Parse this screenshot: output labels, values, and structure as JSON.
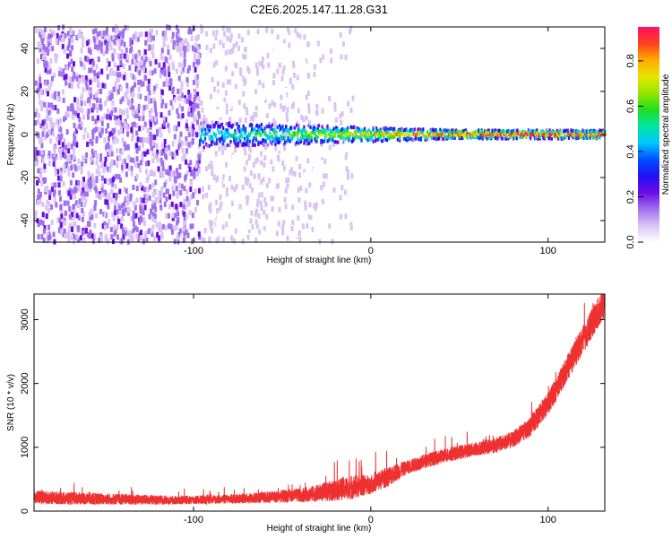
{
  "title": "C2E6.2025.147.11.28.G31",
  "chart_data": [
    {
      "type": "heatmap",
      "xlabel": "Height of straight line (km)",
      "ylabel": "Frequency (Hz)",
      "xlim": [
        -190,
        132
      ],
      "ylim": [
        -50,
        50
      ],
      "xticks": [
        -100,
        0,
        100
      ],
      "yticks": [
        -40,
        -20,
        0,
        20,
        40
      ],
      "colorbar": {
        "label": "Normalized spectral amplitude",
        "range": [
          0,
          0.95
        ],
        "ticks": [
          0.0,
          0.2,
          0.4,
          0.6,
          0.8
        ],
        "colormap": [
          "#ffffff",
          "#d9c4f5",
          "#a070ee",
          "#6a0ae8",
          "#2010f5",
          "#0050ff",
          "#00c8ff",
          "#00e6a0",
          "#20dd20",
          "#98e600",
          "#e6e600",
          "#ffaa00",
          "#ff4020",
          "#ff1060"
        ]
      },
      "band": {
        "noise_region_x": [
          -190,
          -30
        ],
        "signal_start_x": -97,
        "center_frequency_hz": 0,
        "bandwidth_hz_start": 6,
        "bandwidth_hz_end": 2,
        "peak_amplitude": 0.95
      }
    },
    {
      "type": "line",
      "xlabel": "Height of straight line (km)",
      "ylabel": "SNR (10 * v/v)",
      "xlim": [
        -190,
        132
      ],
      "ylim": [
        0,
        3400
      ],
      "xticks": [
        -100,
        0,
        100
      ],
      "yticks": [
        0,
        1000,
        2000,
        3000
      ],
      "series": [
        {
          "color": "#ee3030",
          "x": [
            -190,
            -170,
            -150,
            -130,
            -110,
            -90,
            -70,
            -50,
            -40,
            -30,
            -20,
            -10,
            0,
            10,
            20,
            30,
            40,
            50,
            60,
            70,
            80,
            90,
            100,
            110,
            120,
            132
          ],
          "y": [
            220,
            200,
            190,
            180,
            170,
            180,
            200,
            230,
            250,
            280,
            330,
            380,
            420,
            550,
            680,
            780,
            860,
            920,
            980,
            1030,
            1120,
            1320,
            1680,
            2200,
            2700,
            3300
          ],
          "noise": [
            100,
            100,
            90,
            80,
            70,
            70,
            80,
            100,
            110,
            130,
            170,
            190,
            150,
            160,
            110,
            110,
            110,
            110,
            110,
            120,
            130,
            150,
            180,
            200,
            220,
            250
          ]
        }
      ]
    }
  ]
}
